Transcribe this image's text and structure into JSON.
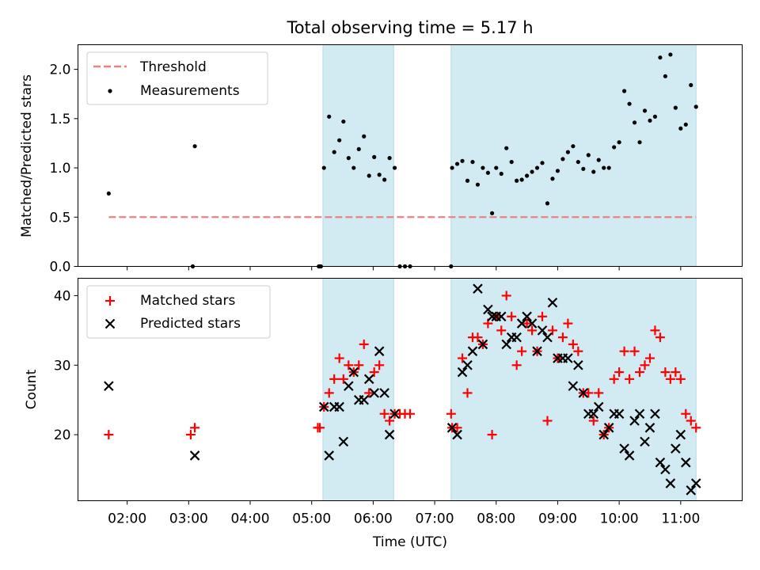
{
  "chart_data": [
    {
      "type": "scatter",
      "title": "Total observing time = 5.17 h",
      "ylabel": "Matched/Predicted stars",
      "ylim": [
        0,
        2.25
      ],
      "xlim": [
        "01:12",
        "12:00"
      ],
      "yticks": [
        "0.0",
        "0.5",
        "1.0",
        "1.5",
        "2.0"
      ],
      "ytick_values": [
        0,
        0.5,
        1.0,
        1.5,
        2.0
      ],
      "legend_position": "upper-left",
      "legend": [
        "Threshold",
        "Measurements"
      ],
      "threshold": {
        "name": "Threshold",
        "value": 0.5,
        "x_range": [
          "01:42",
          "11:15"
        ],
        "color": "#f08080",
        "style": "dashed"
      },
      "shaded_intervals": [
        [
          "05:11",
          "06:20"
        ],
        [
          "07:16",
          "11:15"
        ]
      ],
      "shade_color": "#add8e6",
      "measurements": {
        "name": "Measurements",
        "color": "#000000",
        "points": [
          [
            "01:42",
            0.74
          ],
          [
            "03:04",
            0.0
          ],
          [
            "03:06",
            1.22
          ],
          [
            "05:07",
            0.0
          ],
          [
            "05:08",
            0.0
          ],
          [
            "05:09",
            0.0
          ],
          [
            "05:12",
            1.0
          ],
          [
            "05:17",
            1.52
          ],
          [
            "05:22",
            1.16
          ],
          [
            "05:27",
            1.28
          ],
          [
            "05:31",
            1.47
          ],
          [
            "05:36",
            1.1
          ],
          [
            "05:41",
            1.0
          ],
          [
            "05:46",
            1.19
          ],
          [
            "05:51",
            1.32
          ],
          [
            "05:56",
            0.92
          ],
          [
            "06:01",
            1.11
          ],
          [
            "06:06",
            0.93
          ],
          [
            "06:11",
            0.88
          ],
          [
            "06:16",
            1.1
          ],
          [
            "06:21",
            1.0
          ],
          [
            "06:26",
            0.0
          ],
          [
            "06:31",
            0.0
          ],
          [
            "06:36",
            0.0
          ],
          [
            "07:16",
            0.0
          ],
          [
            "07:17",
            1.0
          ],
          [
            "07:22",
            1.04
          ],
          [
            "07:27",
            1.07
          ],
          [
            "07:32",
            0.87
          ],
          [
            "07:37",
            1.06
          ],
          [
            "07:42",
            0.83
          ],
          [
            "07:47",
            1.0
          ],
          [
            "07:52",
            0.95
          ],
          [
            "07:56",
            0.54
          ],
          [
            "08:00",
            1.0
          ],
          [
            "08:05",
            0.94
          ],
          [
            "08:10",
            1.2
          ],
          [
            "08:15",
            1.06
          ],
          [
            "08:20",
            0.87
          ],
          [
            "08:25",
            0.88
          ],
          [
            "08:30",
            0.92
          ],
          [
            "08:35",
            0.96
          ],
          [
            "08:40",
            1.0
          ],
          [
            "08:45",
            1.05
          ],
          [
            "08:50",
            0.64
          ],
          [
            "08:55",
            0.89
          ],
          [
            "09:00",
            0.97
          ],
          [
            "09:05",
            1.09
          ],
          [
            "09:10",
            1.16
          ],
          [
            "09:15",
            1.22
          ],
          [
            "09:20",
            1.06
          ],
          [
            "09:25",
            0.99
          ],
          [
            "09:30",
            1.13
          ],
          [
            "09:35",
            0.96
          ],
          [
            "09:40",
            1.08
          ],
          [
            "09:45",
            1.0
          ],
          [
            "09:50",
            1.0
          ],
          [
            "09:55",
            1.21
          ],
          [
            "10:00",
            1.26
          ],
          [
            "10:05",
            1.78
          ],
          [
            "10:10",
            1.65
          ],
          [
            "10:15",
            1.46
          ],
          [
            "10:20",
            1.26
          ],
          [
            "10:25",
            1.58
          ],
          [
            "10:30",
            1.48
          ],
          [
            "10:35",
            1.52
          ],
          [
            "10:40",
            2.12
          ],
          [
            "10:45",
            1.93
          ],
          [
            "10:50",
            2.15
          ],
          [
            "10:55",
            1.61
          ],
          [
            "11:00",
            1.4
          ],
          [
            "11:05",
            1.44
          ],
          [
            "11:10",
            1.84
          ],
          [
            "11:15",
            1.62
          ]
        ]
      }
    },
    {
      "type": "scatter",
      "xlabel": "Time (UTC)",
      "ylabel": "Count",
      "ylim": [
        10.5,
        42.5
      ],
      "xlim": [
        "01:12",
        "12:00"
      ],
      "xticks": [
        "02:00",
        "03:00",
        "04:00",
        "05:00",
        "06:00",
        "07:00",
        "08:00",
        "09:00",
        "10:00",
        "11:00"
      ],
      "yticks": [
        "20",
        "30",
        "40"
      ],
      "ytick_values": [
        20,
        30,
        40
      ],
      "legend_position": "upper-left",
      "legend": [
        "Matched stars",
        "Predicted stars"
      ],
      "shaded_intervals": [
        [
          "05:11",
          "06:20"
        ],
        [
          "07:16",
          "11:15"
        ]
      ],
      "shade_color": "#add8e6",
      "series": [
        {
          "name": "Matched stars",
          "marker": "plus",
          "color": "#ff0000",
          "points": [
            [
              "01:42",
              20
            ],
            [
              "03:02",
              20
            ],
            [
              "03:06",
              21
            ],
            [
              "05:06",
              21
            ],
            [
              "05:08",
              21
            ],
            [
              "05:12",
              24
            ],
            [
              "05:17",
              26
            ],
            [
              "05:22",
              28
            ],
            [
              "05:27",
              31
            ],
            [
              "05:31",
              28
            ],
            [
              "05:36",
              30
            ],
            [
              "05:41",
              29
            ],
            [
              "05:46",
              30
            ],
            [
              "05:51",
              33
            ],
            [
              "05:56",
              26
            ],
            [
              "06:01",
              29
            ],
            [
              "06:06",
              30
            ],
            [
              "06:11",
              23
            ],
            [
              "06:16",
              22
            ],
            [
              "06:21",
              23
            ],
            [
              "06:26",
              23
            ],
            [
              "06:31",
              23
            ],
            [
              "06:36",
              23
            ],
            [
              "07:16",
              23
            ],
            [
              "07:17",
              21
            ],
            [
              "07:22",
              21
            ],
            [
              "07:27",
              31
            ],
            [
              "07:32",
              26
            ],
            [
              "07:37",
              34
            ],
            [
              "07:42",
              34
            ],
            [
              "07:47",
              33
            ],
            [
              "07:52",
              36
            ],
            [
              "07:56",
              20
            ],
            [
              "08:00",
              37
            ],
            [
              "08:05",
              35
            ],
            [
              "08:10",
              40
            ],
            [
              "08:15",
              37
            ],
            [
              "08:20",
              30
            ],
            [
              "08:25",
              32
            ],
            [
              "08:30",
              36
            ],
            [
              "08:35",
              35
            ],
            [
              "08:40",
              32
            ],
            [
              "08:45",
              37
            ],
            [
              "08:50",
              22
            ],
            [
              "08:55",
              35
            ],
            [
              "09:00",
              31
            ],
            [
              "09:05",
              34
            ],
            [
              "09:10",
              36
            ],
            [
              "09:15",
              33
            ],
            [
              "09:20",
              32
            ],
            [
              "09:25",
              26
            ],
            [
              "09:30",
              26
            ],
            [
              "09:35",
              22
            ],
            [
              "09:40",
              26
            ],
            [
              "09:45",
              20
            ],
            [
              "09:50",
              21
            ],
            [
              "09:55",
              28
            ],
            [
              "10:00",
              29
            ],
            [
              "10:05",
              32
            ],
            [
              "10:10",
              28
            ],
            [
              "10:15",
              32
            ],
            [
              "10:20",
              29
            ],
            [
              "10:25",
              30
            ],
            [
              "10:30",
              31
            ],
            [
              "10:35",
              35
            ],
            [
              "10:40",
              34
            ],
            [
              "10:45",
              29
            ],
            [
              "10:50",
              28
            ],
            [
              "10:55",
              29
            ],
            [
              "11:00",
              28
            ],
            [
              "11:05",
              23
            ],
            [
              "11:10",
              22
            ],
            [
              "11:15",
              21
            ]
          ]
        },
        {
          "name": "Predicted stars",
          "marker": "x",
          "color": "#000000",
          "points": [
            [
              "01:42",
              27
            ],
            [
              "03:06",
              17
            ],
            [
              "05:12",
              24
            ],
            [
              "05:17",
              17
            ],
            [
              "05:22",
              24
            ],
            [
              "05:27",
              24
            ],
            [
              "05:31",
              19
            ],
            [
              "05:36",
              27
            ],
            [
              "05:41",
              29
            ],
            [
              "05:46",
              25
            ],
            [
              "05:51",
              25
            ],
            [
              "05:56",
              28
            ],
            [
              "06:01",
              26
            ],
            [
              "06:06",
              32
            ],
            [
              "06:11",
              26
            ],
            [
              "06:16",
              20
            ],
            [
              "06:21",
              23
            ],
            [
              "07:17",
              21
            ],
            [
              "07:22",
              20
            ],
            [
              "07:27",
              29
            ],
            [
              "07:32",
              30
            ],
            [
              "07:37",
              32
            ],
            [
              "07:42",
              41
            ],
            [
              "07:47",
              33
            ],
            [
              "07:52",
              38
            ],
            [
              "07:56",
              37
            ],
            [
              "08:00",
              37
            ],
            [
              "08:05",
              37
            ],
            [
              "08:10",
              33
            ],
            [
              "08:15",
              34
            ],
            [
              "08:20",
              34
            ],
            [
              "08:25",
              36
            ],
            [
              "08:30",
              37
            ],
            [
              "08:35",
              36
            ],
            [
              "08:40",
              32
            ],
            [
              "08:45",
              35
            ],
            [
              "08:50",
              34
            ],
            [
              "08:55",
              39
            ],
            [
              "09:00",
              31
            ],
            [
              "09:05",
              31
            ],
            [
              "09:10",
              31
            ],
            [
              "09:15",
              27
            ],
            [
              "09:20",
              30
            ],
            [
              "09:25",
              26
            ],
            [
              "09:30",
              23
            ],
            [
              "09:35",
              23
            ],
            [
              "09:40",
              24
            ],
            [
              "09:45",
              20
            ],
            [
              "09:50",
              21
            ],
            [
              "09:55",
              23
            ],
            [
              "10:00",
              23
            ],
            [
              "10:05",
              18
            ],
            [
              "10:10",
              17
            ],
            [
              "10:15",
              22
            ],
            [
              "10:20",
              23
            ],
            [
              "10:25",
              19
            ],
            [
              "10:30",
              21
            ],
            [
              "10:35",
              23
            ],
            [
              "10:40",
              16
            ],
            [
              "10:45",
              15
            ],
            [
              "10:50",
              13
            ],
            [
              "10:55",
              18
            ],
            [
              "11:00",
              20
            ],
            [
              "11:05",
              16
            ],
            [
              "11:10",
              12
            ],
            [
              "11:15",
              13
            ]
          ]
        }
      ]
    }
  ]
}
